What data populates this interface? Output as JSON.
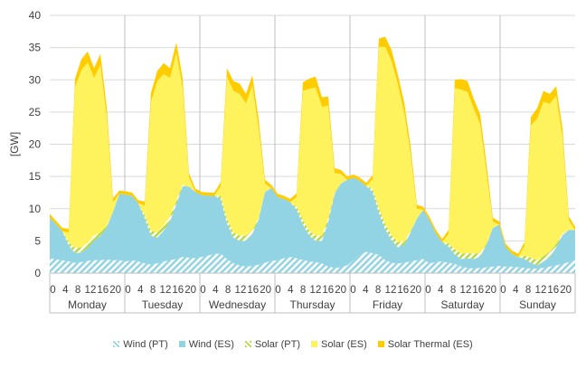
{
  "chart_data": {
    "type": "area",
    "stacked": true,
    "ylabel": "[GW]",
    "ylim": [
      0,
      40
    ],
    "yticks": [
      0,
      5,
      10,
      15,
      20,
      25,
      30,
      35,
      40
    ],
    "grid": "horizontal",
    "legend_position": "bottom",
    "hour_ticks": [
      "0",
      "4",
      "8",
      "12",
      "16",
      "20"
    ],
    "days": [
      "Monday",
      "Tuesday",
      "Wednesday",
      "Thursday",
      "Friday",
      "Saturday",
      "Sunday"
    ],
    "x_unit": "hour (2-hourly samples, Monday 0h to Sunday 22h)",
    "series": [
      {
        "name": "Wind (PT)",
        "color": "#92D4E3",
        "pattern": "hatch",
        "values": [
          2.3,
          2.1,
          2.0,
          1.8,
          1.6,
          1.7,
          1.9,
          2.0,
          2.0,
          2.1,
          2.0,
          2.0,
          1.8,
          2.0,
          1.8,
          1.5,
          1.3,
          1.5,
          1.8,
          2.0,
          2.2,
          2.5,
          2.4,
          2.3,
          2.5,
          2.7,
          3.0,
          3.0,
          2.2,
          1.5,
          1.2,
          1.0,
          1.1,
          1.3,
          1.6,
          1.9,
          2.0,
          2.3,
          2.5,
          2.3,
          2.0,
          1.8,
          1.7,
          1.5,
          1.0,
          0.8,
          0.9,
          1.2,
          2.0,
          2.8,
          3.3,
          3.1,
          2.8,
          2.0,
          1.6,
          1.5,
          1.6,
          1.8,
          2.0,
          2.2,
          1.5,
          1.7,
          1.8,
          1.6,
          1.4,
          1.0,
          0.8,
          0.7,
          0.8,
          0.9,
          1.0,
          1.1,
          1.0,
          1.0,
          0.9,
          0.8,
          0.7,
          0.7,
          0.8,
          1.0,
          1.2,
          1.4,
          1.7,
          2.0
        ]
      },
      {
        "name": "Wind (ES)",
        "color": "#92D4E3",
        "values": [
          6.3,
          5.5,
          4.5,
          2.5,
          1.5,
          1.5,
          2.0,
          3.0,
          3.8,
          5.0,
          7.5,
          10.3,
          10.4,
          10.0,
          9.0,
          7.0,
          4.5,
          4.0,
          4.8,
          6.0,
          8.5,
          11.0,
          11.0,
          10.3,
          9.6,
          9.3,
          9.0,
          8.5,
          5.5,
          4.0,
          3.8,
          4.0,
          5.0,
          7.0,
          11.0,
          11.3,
          9.8,
          9.2,
          8.5,
          7.5,
          5.5,
          4.0,
          3.3,
          3.5,
          7.0,
          11.5,
          13.0,
          13.3,
          12.8,
          11.5,
          10.2,
          9.5,
          6.5,
          4.8,
          3.5,
          2.5,
          2.8,
          4.5,
          6.5,
          7.6,
          6.7,
          4.5,
          3.0,
          2.5,
          1.5,
          1.2,
          1.5,
          1.5,
          1.8,
          3.5,
          6.0,
          6.4,
          3.1,
          2.0,
          1.6,
          1.4,
          0.9,
          0.5,
          1.0,
          1.5,
          2.8,
          4.5,
          5.0,
          4.7
        ]
      },
      {
        "name": "Solar (PT)",
        "color": "#B3D94A",
        "pattern": "hatch",
        "values": [
          0,
          0,
          0,
          0.5,
          0.8,
          0.8,
          0.8,
          0.8,
          0.5,
          0.2,
          0,
          0,
          0,
          0,
          0,
          0.5,
          0.8,
          0.8,
          0.8,
          0.8,
          0.5,
          0.2,
          0,
          0,
          0,
          0,
          0,
          0.5,
          0.8,
          0.8,
          0.8,
          0.8,
          0.5,
          0.2,
          0,
          0,
          0,
          0,
          0,
          0.5,
          0.8,
          0.8,
          0.8,
          0.8,
          0.5,
          0.2,
          0,
          0,
          0,
          0,
          0,
          0.5,
          0.8,
          0.8,
          0.8,
          0.8,
          0.5,
          0.2,
          0,
          0,
          0,
          0,
          0,
          0.5,
          0.8,
          0.8,
          0.8,
          0.8,
          0.5,
          0.2,
          0,
          0,
          0,
          0,
          0,
          0.5,
          0.8,
          0.8,
          0.8,
          0.8,
          0.5,
          0.2,
          0,
          0
        ]
      },
      {
        "name": "Solar (ES)",
        "color": "#FFF35D",
        "values": [
          0,
          0,
          0,
          1.5,
          25.0,
          27.5,
          28.0,
          24.5,
          26.0,
          17.0,
          1.5,
          0,
          0,
          0,
          0,
          1.5,
          20.0,
          23.5,
          23.5,
          21.5,
          23.0,
          15.0,
          1.5,
          0,
          0,
          0,
          0,
          1.5,
          22.0,
          22.0,
          22.0,
          20.5,
          22.5,
          14.0,
          1.3,
          0,
          0,
          0,
          0,
          1.5,
          20.0,
          22.0,
          23.0,
          20.0,
          17.5,
          3.0,
          1.5,
          0,
          0,
          0,
          0,
          1.5,
          25.0,
          27.5,
          27.0,
          24.5,
          20.0,
          12.0,
          1.5,
          0,
          0,
          0,
          0,
          1.5,
          25.0,
          25.5,
          25.0,
          22.5,
          20.0,
          11.0,
          1.0,
          0,
          0,
          0,
          0,
          1.5,
          20.5,
          22.0,
          24.0,
          23.0,
          23.0,
          15.0,
          1.5,
          0
        ]
      },
      {
        "name": "Solar Thermal (ES)",
        "color": "#FFCC00",
        "values": [
          0.6,
          0.5,
          0.5,
          0.6,
          1.3,
          1.7,
          1.7,
          1.5,
          1.7,
          1.5,
          0.6,
          0.5,
          0.5,
          0.5,
          0.5,
          0.6,
          1.4,
          1.6,
          1.7,
          1.5,
          1.6,
          1.5,
          0.6,
          0.5,
          0.5,
          0.5,
          0.5,
          0.6,
          1.3,
          1.5,
          1.6,
          1.5,
          1.6,
          1.4,
          0.6,
          0.5,
          0.5,
          0.5,
          0.5,
          0.6,
          1.3,
          1.6,
          1.7,
          1.5,
          1.4,
          0.8,
          0.6,
          0.5,
          0.5,
          0.5,
          0.5,
          0.6,
          1.3,
          1.6,
          1.7,
          1.5,
          1.5,
          1.2,
          0.6,
          0.5,
          0.5,
          0.5,
          0.5,
          0.6,
          1.3,
          1.6,
          1.7,
          1.5,
          1.5,
          1.3,
          0.6,
          0.5,
          0.5,
          0.5,
          0.5,
          0.6,
          1.3,
          1.6,
          1.7,
          1.5,
          1.5,
          1.4,
          0.6,
          0.5
        ]
      }
    ]
  }
}
